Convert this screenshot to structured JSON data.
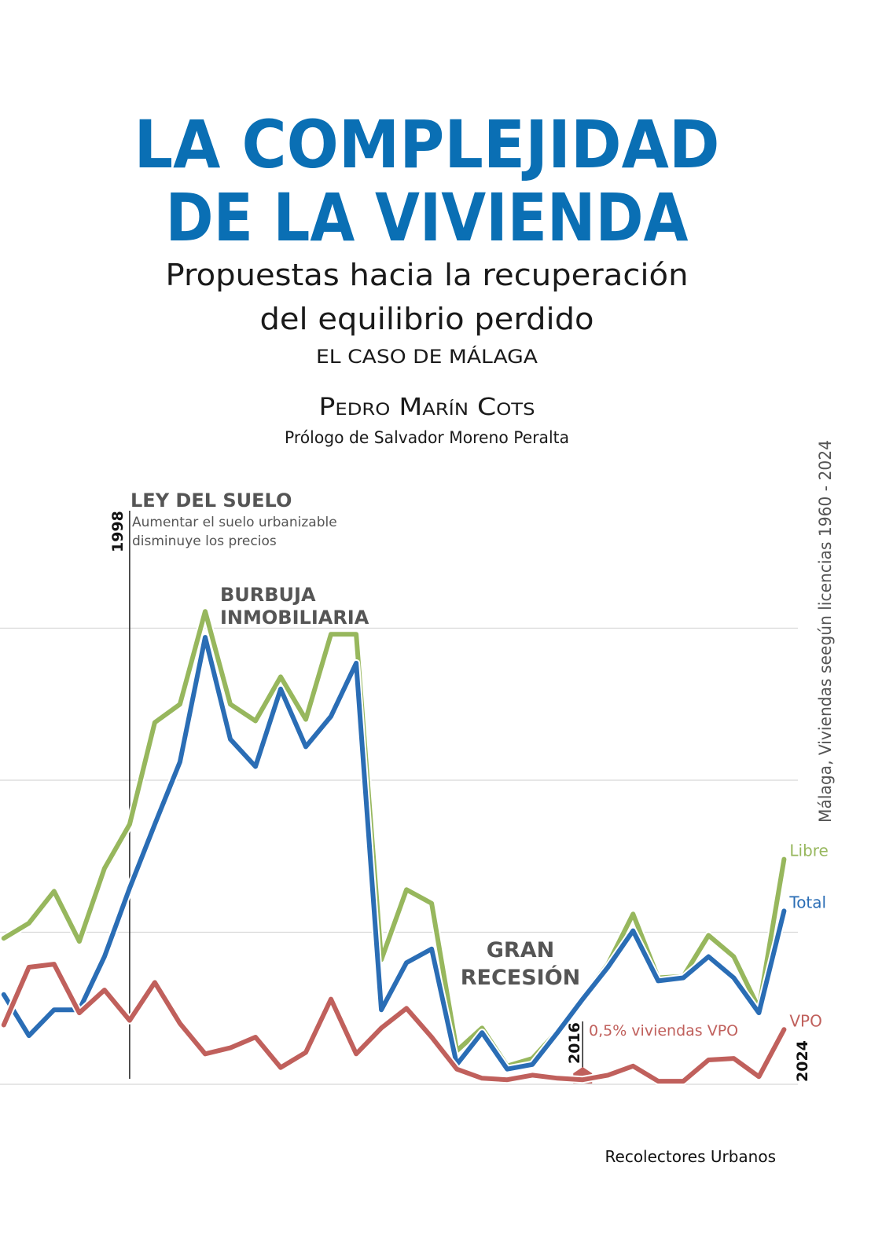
{
  "header": {
    "title": [
      "LA COMPLEJIDAD",
      "DE LA VIVIENDA"
    ],
    "subtitle": [
      "Propuestas hacia la recuperación",
      "del equilibrio perdido"
    ],
    "case": "EL CASO DE MÁLAGA",
    "author": "Pedro Marín Cots",
    "prologue": "Prólogo de Salvador Moreno Peralta"
  },
  "chart_data": {
    "type": "line",
    "title": "Málaga, Viviendas seegún licencias 1960 - 2024",
    "x": [
      1993,
      1994,
      1995,
      1996,
      1997,
      1998,
      1999,
      2000,
      2001,
      2002,
      2003,
      2004,
      2005,
      2006,
      2007,
      2008,
      2009,
      2010,
      2011,
      2012,
      2013,
      2014,
      2015,
      2016,
      2017,
      2018,
      2019,
      2020,
      2021,
      2022,
      2023,
      2024
    ],
    "xlim": [
      1992.85,
      2024.55
    ],
    "ylim": [
      0,
      4000
    ],
    "yticks": [
      0,
      1000,
      2000,
      3000
    ],
    "grid": true,
    "series": [
      {
        "name": "Libre",
        "color": "#97b75d",
        "values": [
          960,
          1060,
          1270,
          940,
          1420,
          1710,
          2380,
          2500,
          3110,
          2500,
          2390,
          2680,
          2400,
          2960,
          2960,
          820,
          1280,
          1190,
          220,
          370,
          120,
          170,
          350,
          570,
          790,
          1120,
          700,
          710,
          980,
          840,
          500,
          1480
        ]
      },
      {
        "name": "Total",
        "color": "#2a6db5",
        "values": [
          590,
          320,
          490,
          490,
          840,
          1290,
          1710,
          2120,
          2940,
          2270,
          2090,
          2600,
          2220,
          2420,
          2770,
          490,
          800,
          890,
          130,
          340,
          100,
          130,
          340,
          560,
          770,
          1010,
          680,
          700,
          840,
          700,
          470,
          1140
        ]
      },
      {
        "name": "VPO",
        "color": "#c0605c",
        "values": [
          390,
          770,
          790,
          470,
          620,
          420,
          670,
          400,
          200,
          240,
          310,
          110,
          210,
          560,
          200,
          370,
          500,
          310,
          100,
          40,
          30,
          60,
          40,
          30,
          60,
          120,
          20,
          20,
          160,
          170,
          50,
          360
        ]
      }
    ],
    "markers": [
      {
        "x": 1998,
        "label": "1998"
      },
      {
        "x": 2016,
        "label": "2016"
      }
    ],
    "end_label": "2024",
    "annotations": {
      "law_title": "LEY DEL SUELO",
      "law_text": [
        "Aumentar el suelo urbanizable",
        "disminuye los precios"
      ],
      "bubble": [
        "BURBUJA",
        "INMOBILIARIA"
      ],
      "recession": [
        "GRAN",
        "RECESIÓN"
      ],
      "vpo_note": "0,5% viviendas VPO"
    }
  },
  "footer": {
    "publisher": "Recolectores Urbanos"
  }
}
